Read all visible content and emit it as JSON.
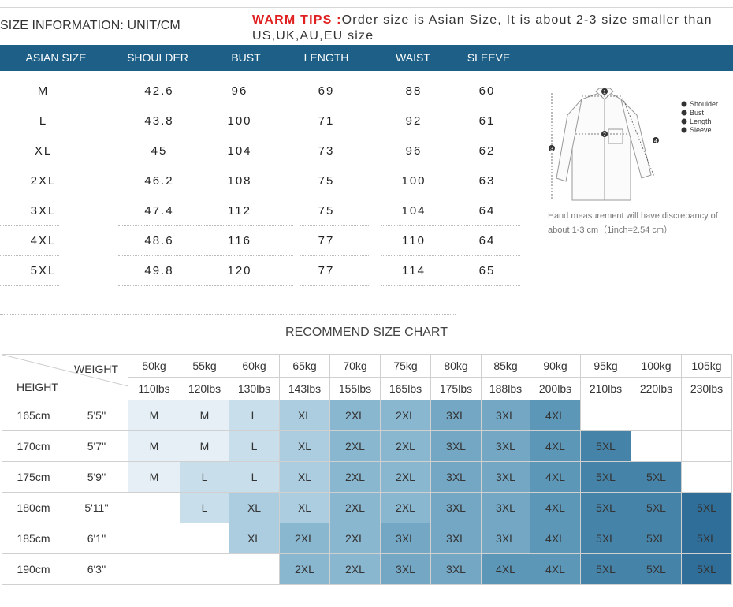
{
  "header": {
    "size_info": "SIZE INFORMATION:  UNIT/CM",
    "tips_label": "WARM TIPS :",
    "tips_text": "Order size is Asian Size, It is about 2-3 size smaller than US,UK,AU,EU size"
  },
  "size_table": {
    "columns": [
      "ASIAN SIZE",
      "SHOULDER",
      "BUST",
      "LENGTH",
      "WAIST",
      "SLEEVE"
    ],
    "rows": [
      [
        "M",
        "42.6",
        "96",
        "69",
        "88",
        "60"
      ],
      [
        "L",
        "43.8",
        "100",
        "71",
        "92",
        "61"
      ],
      [
        "XL",
        "45",
        "104",
        "73",
        "96",
        "62"
      ],
      [
        "2XL",
        "46.2",
        "108",
        "75",
        "100",
        "63"
      ],
      [
        "3XL",
        "47.4",
        "112",
        "75",
        "104",
        "64"
      ],
      [
        "4XL",
        "48.6",
        "116",
        "77",
        "110",
        "64"
      ],
      [
        "5XL",
        "49.8",
        "120",
        "77",
        "114",
        "65"
      ]
    ]
  },
  "illustration": {
    "legend": [
      "Shoulder",
      "Bust",
      "Length",
      "Sleeve"
    ],
    "markers": [
      "1",
      "2",
      "3",
      "4"
    ]
  },
  "note": "Hand measurement will have discrepancy of about 1-3 cm（1inch=2.54 cm）",
  "recommend": {
    "title": "RECOMMEND SIZE CHART",
    "weight_label": "WEIGHT",
    "height_label": "HEIGHT",
    "kg": [
      "50kg",
      "55kg",
      "60kg",
      "65kg",
      "70kg",
      "75kg",
      "80kg",
      "85kg",
      "90kg",
      "95kg",
      "100kg",
      "105kg"
    ],
    "lbs": [
      "110lbs",
      "120lbs",
      "130lbs",
      "143lbs",
      "155lbs",
      "165lbs",
      "175lbs",
      "188lbs",
      "200lbs",
      "210lbs",
      "220lbs",
      "230lbs"
    ],
    "rows": [
      {
        "cm": "165cm",
        "ft": "5'5''",
        "sizes": [
          "M",
          "M",
          "L",
          "XL",
          "2XL",
          "2XL",
          "3XL",
          "3XL",
          "4XL",
          "",
          "",
          ""
        ]
      },
      {
        "cm": "170cm",
        "ft": "5'7''",
        "sizes": [
          "M",
          "M",
          "L",
          "XL",
          "2XL",
          "2XL",
          "3XL",
          "3XL",
          "4XL",
          "5XL",
          "",
          ""
        ]
      },
      {
        "cm": "175cm",
        "ft": "5'9''",
        "sizes": [
          "M",
          "L",
          "L",
          "XL",
          "2XL",
          "2XL",
          "3XL",
          "3XL",
          "4XL",
          "5XL",
          "5XL",
          ""
        ]
      },
      {
        "cm": "180cm",
        "ft": "5'11''",
        "sizes": [
          "",
          "L",
          "XL",
          "XL",
          "2XL",
          "2XL",
          "3XL",
          "3XL",
          "4XL",
          "5XL",
          "5XL",
          "5XL"
        ]
      },
      {
        "cm": "185cm",
        "ft": "6'1''",
        "sizes": [
          "",
          "",
          "XL",
          "2XL",
          "2XL",
          "3XL",
          "3XL",
          "3XL",
          "4XL",
          "5XL",
          "5XL",
          "5XL"
        ]
      },
      {
        "cm": "190cm",
        "ft": "6'3''",
        "sizes": [
          "",
          "",
          "",
          "2XL",
          "2XL",
          "3XL",
          "3XL",
          "4XL",
          "4XL",
          "5XL",
          "5XL",
          "5XL"
        ]
      }
    ]
  },
  "colors": {
    "header_bar": "#1d5f87",
    "warm_tips": "#e02020"
  }
}
